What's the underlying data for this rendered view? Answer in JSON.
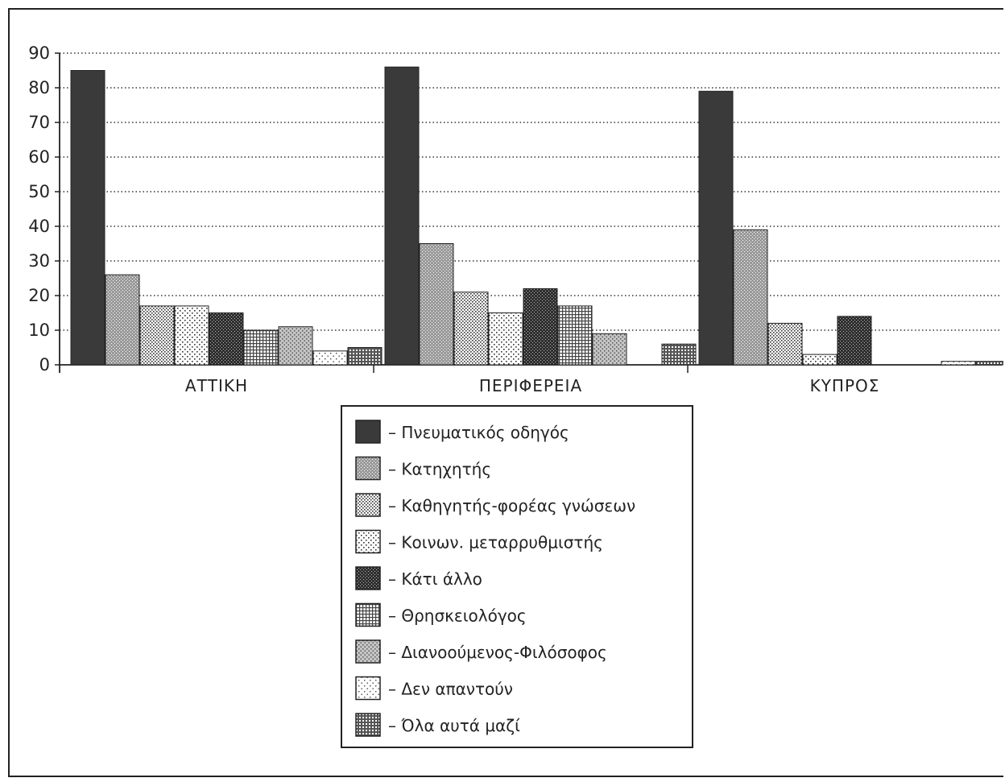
{
  "chart_data": {
    "type": "bar",
    "title": "",
    "xlabel": "",
    "ylabel": "",
    "ylim": [
      0,
      90
    ],
    "yticks": [
      0,
      10,
      20,
      30,
      40,
      50,
      60,
      70,
      80,
      90
    ],
    "grid": true,
    "grid_style": "dotted",
    "legend_position": "bottom-center",
    "categories": [
      "ΑΤΤΙΚΗ",
      "ΠΕΡΙΦΕΡΕΙΑ",
      "ΚΥΠΡΟΣ"
    ],
    "series": [
      {
        "name": "Πνευματικός οδηγός",
        "pattern": "solid",
        "values": [
          85,
          86,
          79
        ]
      },
      {
        "name": "Κατηχητής",
        "pattern": "dense",
        "values": [
          26,
          35,
          39
        ]
      },
      {
        "name": "Καθηγητής-φορέας γνώσεων",
        "pattern": "dots",
        "values": [
          17,
          21,
          12
        ]
      },
      {
        "name": "Κοινων. μεταρρυθμιστής",
        "pattern": "sparse",
        "values": [
          17,
          15,
          3
        ]
      },
      {
        "name": "Κάτι άλλο",
        "pattern": "dark",
        "values": [
          15,
          22,
          14
        ]
      },
      {
        "name": "Θρησκειολόγος",
        "pattern": "grid",
        "values": [
          10,
          17,
          0
        ]
      },
      {
        "name": "Διανοούμενος-Φιλόσοφος",
        "pattern": "cross",
        "values": [
          11,
          9,
          0
        ]
      },
      {
        "name": "Δεν απαντούν",
        "pattern": "light",
        "values": [
          4,
          0,
          1
        ]
      },
      {
        "name": "Όλα αυτά μαζί",
        "pattern": "checker",
        "values": [
          5,
          6,
          1
        ]
      }
    ]
  }
}
